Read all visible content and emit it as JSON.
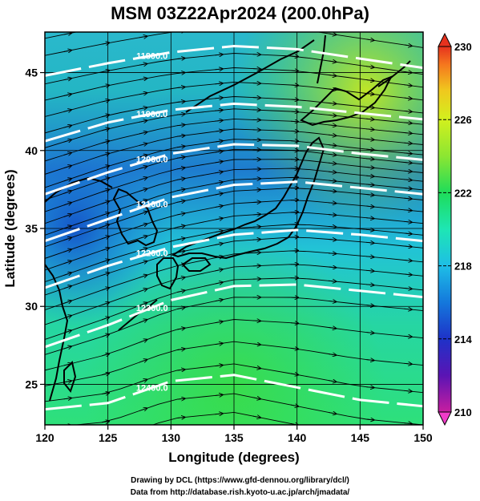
{
  "chart_data": {
    "type": "heatmap",
    "title": "MSM 03Z22Apr2024 (200.0hPa)",
    "xlabel": "Longitude (degrees)",
    "ylabel": "Latitude  (degrees)",
    "xlim": [
      120,
      150
    ],
    "ylim": [
      22.4,
      47.6
    ],
    "x_ticks": [
      120,
      125,
      130,
      135,
      140,
      145,
      150
    ],
    "y_ticks": [
      25,
      30,
      35,
      40,
      45
    ],
    "grid": true,
    "colorbar": {
      "min": 210,
      "max": 230,
      "ticks": [
        210,
        214,
        218,
        222,
        226,
        230
      ],
      "colors": [
        "#c81ea0",
        "#5a14b4",
        "#1e46c8",
        "#1478dc",
        "#1ebee6",
        "#1ee6b4",
        "#1edc5a",
        "#8ce632",
        "#d2f01e",
        "#f0d21e",
        "#f58c1e",
        "#e6321e"
      ]
    },
    "contours": [
      {
        "label": "11800.0",
        "lon": [
          120,
          125,
          130,
          135,
          140,
          145,
          150
        ],
        "lat": [
          44.8,
          45.6,
          46.3,
          46.7,
          46.5,
          45.9,
          45.3
        ]
      },
      {
        "label": "11900.0",
        "lon": [
          120,
          125,
          130,
          135,
          140,
          145,
          150
        ],
        "lat": [
          40.6,
          41.8,
          42.6,
          43.0,
          42.8,
          42.4,
          42.0
        ]
      },
      {
        "label": "12000.0",
        "lon": [
          120,
          125,
          130,
          135,
          140,
          145,
          150
        ],
        "lat": [
          37.2,
          38.6,
          39.8,
          40.4,
          40.3,
          39.8,
          39.4
        ]
      },
      {
        "label": "12100.0",
        "lon": [
          120,
          125,
          130,
          135,
          140,
          145,
          150
        ],
        "lat": [
          34.2,
          35.6,
          37.0,
          37.8,
          38.0,
          37.6,
          37.2
        ]
      },
      {
        "label": "12200.0",
        "lon": [
          120,
          125,
          130,
          135,
          140,
          145,
          150
        ],
        "lat": [
          31.2,
          32.6,
          33.8,
          34.6,
          34.9,
          34.6,
          34.2
        ]
      },
      {
        "label": "12300.0",
        "lon": [
          120,
          125,
          130,
          135,
          140,
          145,
          150
        ],
        "lat": [
          27.4,
          28.8,
          30.4,
          31.3,
          31.4,
          31.0,
          30.6
        ]
      },
      {
        "label": "12400.0",
        "lon": [
          120,
          125,
          130,
          135,
          140,
          145,
          150
        ],
        "lat": [
          23.4,
          23.8,
          25.2,
          25.6,
          24.8,
          24.0,
          23.6
        ]
      }
    ]
  },
  "credits": {
    "line1": "Drawing by DCL (https://www.gfd-dennou.org/library/dcl/)",
    "line2": "Data from http://database.rish.kyoto-u.ac.jp/arch/jmadata/"
  }
}
